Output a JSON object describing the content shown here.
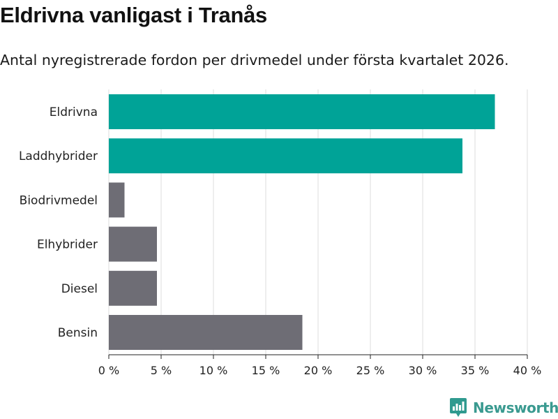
{
  "title": "Eldrivna vanligast i Tranås",
  "subtitle": "Antal nyregistrerade fordon per drivmedel under första kvartalet 2026.",
  "brand": {
    "name": "Newsworthy",
    "icon": "newsworthy-logo-icon",
    "color": "#2f9a8f"
  },
  "colors": {
    "highlight": "#00a397",
    "default": "#6e6d75",
    "grid": "#dddddd",
    "axis": "#222222"
  },
  "chart_data": {
    "type": "bar",
    "orientation": "horizontal",
    "title": "Eldrivna vanligast i Tranås",
    "subtitle": "Antal nyregistrerade fordon per drivmedel under första kvartalet 2026.",
    "xlabel": "",
    "ylabel": "",
    "xlim": [
      0,
      40
    ],
    "categories": [
      "Eldrivna",
      "Laddhybrider",
      "Biodrivmedel",
      "Elhybrider",
      "Diesel",
      "Bensin"
    ],
    "values": [
      36.9,
      33.8,
      1.5,
      4.6,
      4.6,
      18.5
    ],
    "highlighted": [
      true,
      true,
      false,
      false,
      false,
      false
    ],
    "ticks": [
      0,
      5,
      10,
      15,
      20,
      25,
      30,
      35,
      40
    ],
    "tick_labels": [
      "0 %",
      "5 %",
      "10 %",
      "15 %",
      "20 %",
      "25 %",
      "30 %",
      "35 %",
      "40 %"
    ],
    "grid": true,
    "legend": "none"
  }
}
